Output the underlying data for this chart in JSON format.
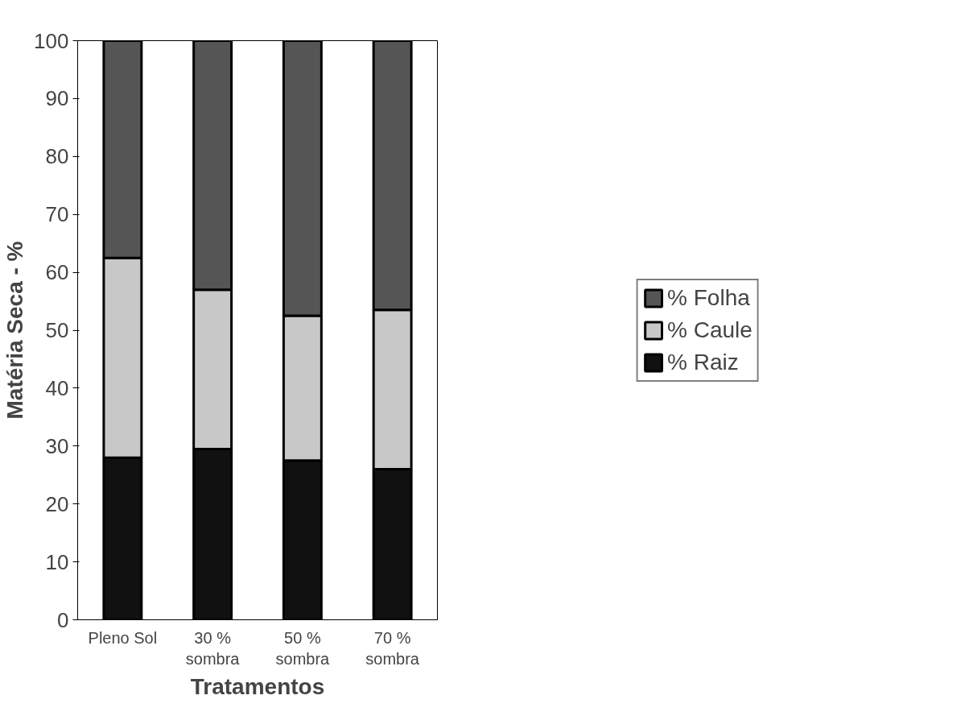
{
  "chart_data": {
    "type": "bar",
    "stacked": true,
    "xlabel": "Tratamentos",
    "ylabel": "Matéria Seca - %",
    "categories": [
      "Pleno Sol",
      "30 %\nsombra",
      "50 %\nsombra",
      "70 %\nsombra"
    ],
    "series": [
      {
        "name": "% Raiz",
        "color": "#111111",
        "values": [
          28,
          29.5,
          27.5,
          26
        ]
      },
      {
        "name": "% Caule",
        "color": "#c8c8c8",
        "values": [
          34.5,
          27.5,
          25,
          27.5
        ]
      },
      {
        "name": "% Folha",
        "color": "#555555",
        "values": [
          37.5,
          43,
          47.5,
          46.5
        ]
      }
    ],
    "ylim": [
      0,
      100
    ],
    "yticks": [
      0,
      10,
      20,
      30,
      40,
      50,
      60,
      70,
      80,
      90,
      100
    ],
    "legend": "right",
    "grid": false
  }
}
